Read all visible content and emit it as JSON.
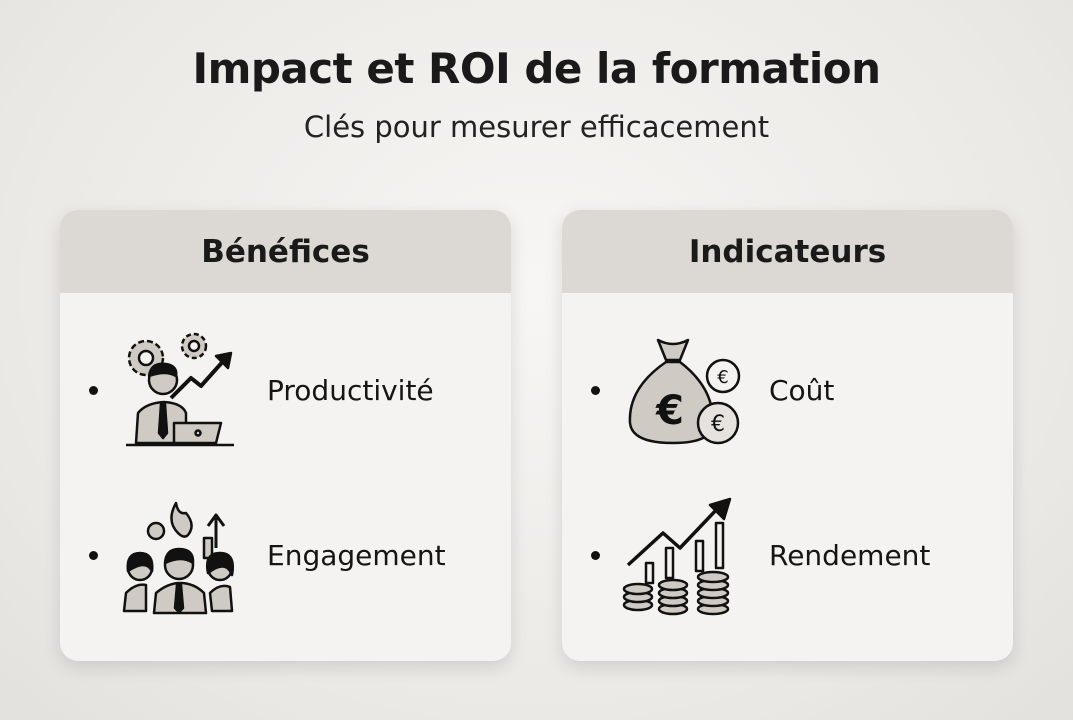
{
  "title": "Impact et ROI de la formation",
  "subtitle": "Clés pour mesurer efficacement",
  "cards": [
    {
      "heading": "Bénéfices",
      "items": [
        {
          "label": "Productivité",
          "icon": "worker-gears-growth-icon"
        },
        {
          "label": "Engagement",
          "icon": "team-flame-growth-icon"
        }
      ]
    },
    {
      "heading": "Indicateurs",
      "items": [
        {
          "label": "Coût",
          "icon": "euro-money-bag-icon"
        },
        {
          "label": "Rendement",
          "icon": "euro-coins-growth-chart-icon"
        }
      ]
    }
  ],
  "colors": {
    "header": "#dcd9d4",
    "card": "#f4f3f1",
    "icon_fill": "#cfcbc4",
    "text": "#1a1a1a"
  }
}
